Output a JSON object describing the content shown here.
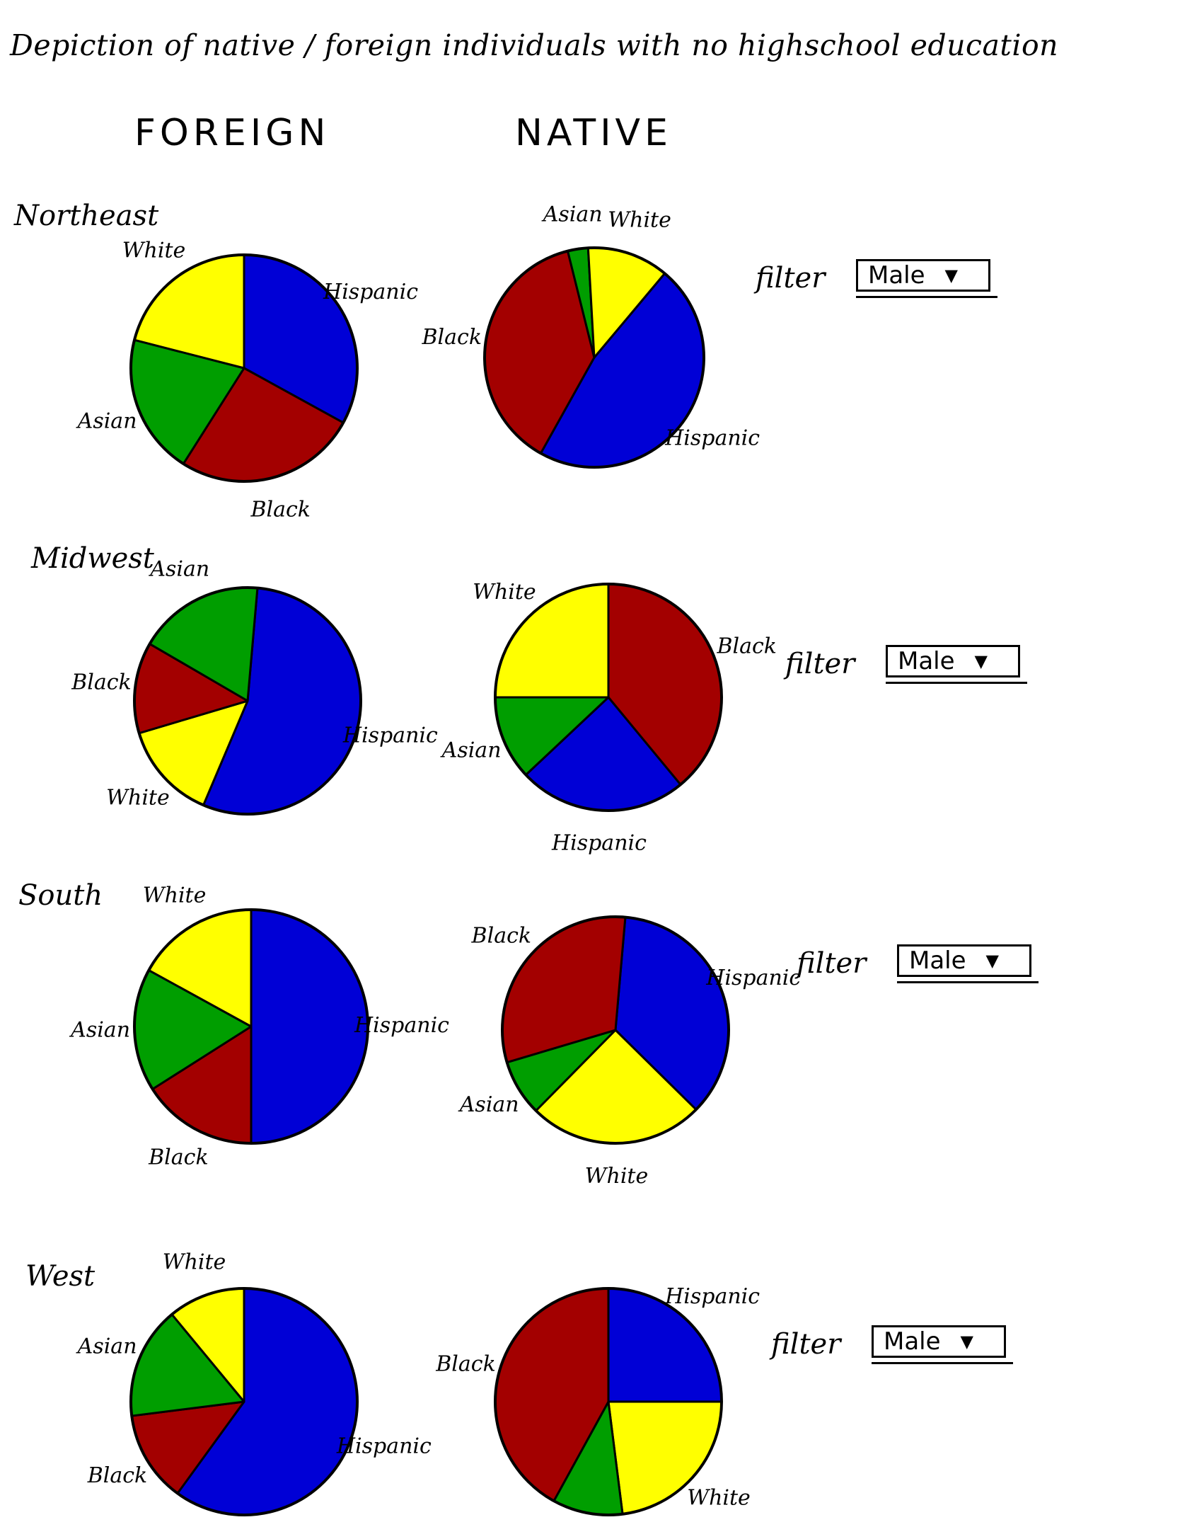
{
  "title": "Depiction of native / foreign individuals with no highschool education",
  "columns": [
    "FOREIGN",
    "NATIVE"
  ],
  "regions": [
    "Northeast",
    "Midwest",
    "South",
    "West"
  ],
  "filter": {
    "label": "filter",
    "value": "Male",
    "arrow": "▼"
  },
  "colors": {
    "Hispanic": "#0000d6",
    "Black": "#a30000",
    "Asian": "#009e00",
    "White": "#ffff00"
  },
  "chart_data": [
    {
      "type": "pie",
      "region": "Northeast",
      "group": "FOREIGN",
      "slices": [
        {
          "label": "Hispanic",
          "value": 33
        },
        {
          "label": "Black",
          "value": 26
        },
        {
          "label": "Asian",
          "value": 20
        },
        {
          "label": "White",
          "value": 21
        }
      ]
    },
    {
      "type": "pie",
      "region": "Northeast",
      "group": "NATIVE",
      "slices": [
        {
          "label": "Hispanic",
          "value": 47
        },
        {
          "label": "Black",
          "value": 38
        },
        {
          "label": "Asian",
          "value": 3
        },
        {
          "label": "White",
          "value": 12
        }
      ]
    },
    {
      "type": "pie",
      "region": "Midwest",
      "group": "FOREIGN",
      "slices": [
        {
          "label": "Hispanic",
          "value": 55
        },
        {
          "label": "White",
          "value": 14
        },
        {
          "label": "Black",
          "value": 13
        },
        {
          "label": "Asian",
          "value": 18
        }
      ]
    },
    {
      "type": "pie",
      "region": "Midwest",
      "group": "NATIVE",
      "slices": [
        {
          "label": "Black",
          "value": 39
        },
        {
          "label": "Hispanic",
          "value": 24
        },
        {
          "label": "Asian",
          "value": 12
        },
        {
          "label": "White",
          "value": 25
        }
      ]
    },
    {
      "type": "pie",
      "region": "South",
      "group": "FOREIGN",
      "slices": [
        {
          "label": "Hispanic",
          "value": 50
        },
        {
          "label": "Black",
          "value": 16
        },
        {
          "label": "Asian",
          "value": 17
        },
        {
          "label": "White",
          "value": 17
        }
      ]
    },
    {
      "type": "pie",
      "region": "South",
      "group": "NATIVE",
      "slices": [
        {
          "label": "Hispanic",
          "value": 36
        },
        {
          "label": "White",
          "value": 25
        },
        {
          "label": "Asian",
          "value": 8
        },
        {
          "label": "Black",
          "value": 31
        }
      ]
    },
    {
      "type": "pie",
      "region": "West",
      "group": "FOREIGN",
      "slices": [
        {
          "label": "Hispanic",
          "value": 60
        },
        {
          "label": "Black",
          "value": 13
        },
        {
          "label": "Asian",
          "value": 16
        },
        {
          "label": "White",
          "value": 11
        }
      ]
    },
    {
      "type": "pie",
      "region": "West",
      "group": "NATIVE",
      "slices": [
        {
          "label": "Hispanic",
          "value": 25
        },
        {
          "label": "White",
          "value": 23
        },
        {
          "label": "Asian",
          "value": 10
        },
        {
          "label": "Black",
          "value": 42
        }
      ]
    }
  ]
}
